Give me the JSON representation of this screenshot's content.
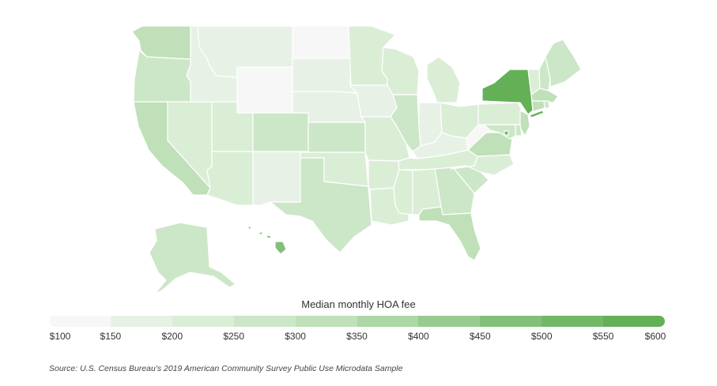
{
  "legend": {
    "title": "Median monthly HOA fee",
    "ticks": [
      "$100",
      "$150",
      "$200",
      "$250",
      "$300",
      "$350",
      "$400",
      "$450",
      "$500",
      "$550",
      "$600"
    ],
    "colors": [
      "#f6f7f6",
      "#e8f1e6",
      "#daeed6",
      "#cce7c7",
      "#bfe0b8",
      "#add7a5",
      "#97cc8e",
      "#82c079",
      "#72b867",
      "#64b057"
    ]
  },
  "source": "Source:  U.S. Census Bureau's 2019 American Community Survey Public Use Microdata Sample",
  "map_data": {
    "metric": "median monthly HOA fee (USD)",
    "states": [
      {
        "name": "Washington",
        "abbr": "WA",
        "value": 320
      },
      {
        "name": "Oregon",
        "abbr": "OR",
        "value": 255
      },
      {
        "name": "California",
        "abbr": "CA",
        "value": 330
      },
      {
        "name": "Nevada",
        "abbr": "NV",
        "value": 215
      },
      {
        "name": "Idaho",
        "abbr": "ID",
        "value": 190
      },
      {
        "name": "Montana",
        "abbr": "MT",
        "value": 190
      },
      {
        "name": "Wyoming",
        "abbr": "WY",
        "value": 110
      },
      {
        "name": "Utah",
        "abbr": "UT",
        "value": 205
      },
      {
        "name": "Arizona",
        "abbr": "AZ",
        "value": 215
      },
      {
        "name": "Colorado",
        "abbr": "CO",
        "value": 265
      },
      {
        "name": "New Mexico",
        "abbr": "NM",
        "value": 185
      },
      {
        "name": "North Dakota",
        "abbr": "ND",
        "value": 110
      },
      {
        "name": "South Dakota",
        "abbr": "SD",
        "value": 185
      },
      {
        "name": "Nebraska",
        "abbr": "NE",
        "value": 190
      },
      {
        "name": "Kansas",
        "abbr": "KS",
        "value": 255
      },
      {
        "name": "Oklahoma",
        "abbr": "OK",
        "value": 215
      },
      {
        "name": "Texas",
        "abbr": "TX",
        "value": 270
      },
      {
        "name": "Minnesota",
        "abbr": "MN",
        "value": 235
      },
      {
        "name": "Iowa",
        "abbr": "IA",
        "value": 185
      },
      {
        "name": "Missouri",
        "abbr": "MO",
        "value": 215
      },
      {
        "name": "Arkansas",
        "abbr": "AR",
        "value": 200
      },
      {
        "name": "Louisiana",
        "abbr": "LA",
        "value": 215
      },
      {
        "name": "Wisconsin",
        "abbr": "WI",
        "value": 215
      },
      {
        "name": "Illinois",
        "abbr": "IL",
        "value": 275
      },
      {
        "name": "Michigan",
        "abbr": "MI",
        "value": 210
      },
      {
        "name": "Indiana",
        "abbr": "IN",
        "value": 155
      },
      {
        "name": "Ohio",
        "abbr": "OH",
        "value": 205
      },
      {
        "name": "Kentucky",
        "abbr": "KY",
        "value": 195
      },
      {
        "name": "Tennessee",
        "abbr": "TN",
        "value": 205
      },
      {
        "name": "Mississippi",
        "abbr": "MS",
        "value": 215
      },
      {
        "name": "Alabama",
        "abbr": "AL",
        "value": 215
      },
      {
        "name": "Georgia",
        "abbr": "GA",
        "value": 255
      },
      {
        "name": "Florida",
        "abbr": "FL",
        "value": 310
      },
      {
        "name": "South Carolina",
        "abbr": "SC",
        "value": 255
      },
      {
        "name": "North Carolina",
        "abbr": "NC",
        "value": 210
      },
      {
        "name": "Virginia",
        "abbr": "VA",
        "value": 330
      },
      {
        "name": "West Virginia",
        "abbr": "WV",
        "value": 110
      },
      {
        "name": "Pennsylvania",
        "abbr": "PA",
        "value": 200
      },
      {
        "name": "New York",
        "abbr": "NY",
        "value": 560
      },
      {
        "name": "Vermont",
        "abbr": "VT",
        "value": 220
      },
      {
        "name": "New Hampshire",
        "abbr": "NH",
        "value": 290
      },
      {
        "name": "Maine",
        "abbr": "ME",
        "value": 265
      },
      {
        "name": "Massachusetts",
        "abbr": "MA",
        "value": 330
      },
      {
        "name": "Rhode Island",
        "abbr": "RI",
        "value": 275
      },
      {
        "name": "Connecticut",
        "abbr": "CT",
        "value": 330
      },
      {
        "name": "New Jersey",
        "abbr": "NJ",
        "value": 330
      },
      {
        "name": "Delaware",
        "abbr": "DE",
        "value": 250
      },
      {
        "name": "Maryland",
        "abbr": "MD",
        "value": 295
      },
      {
        "name": "District of Columbia",
        "abbr": "DC",
        "value": 500
      },
      {
        "name": "Alaska",
        "abbr": "AK",
        "value": 275
      },
      {
        "name": "Hawaii",
        "abbr": "HI",
        "value": 460
      }
    ]
  }
}
